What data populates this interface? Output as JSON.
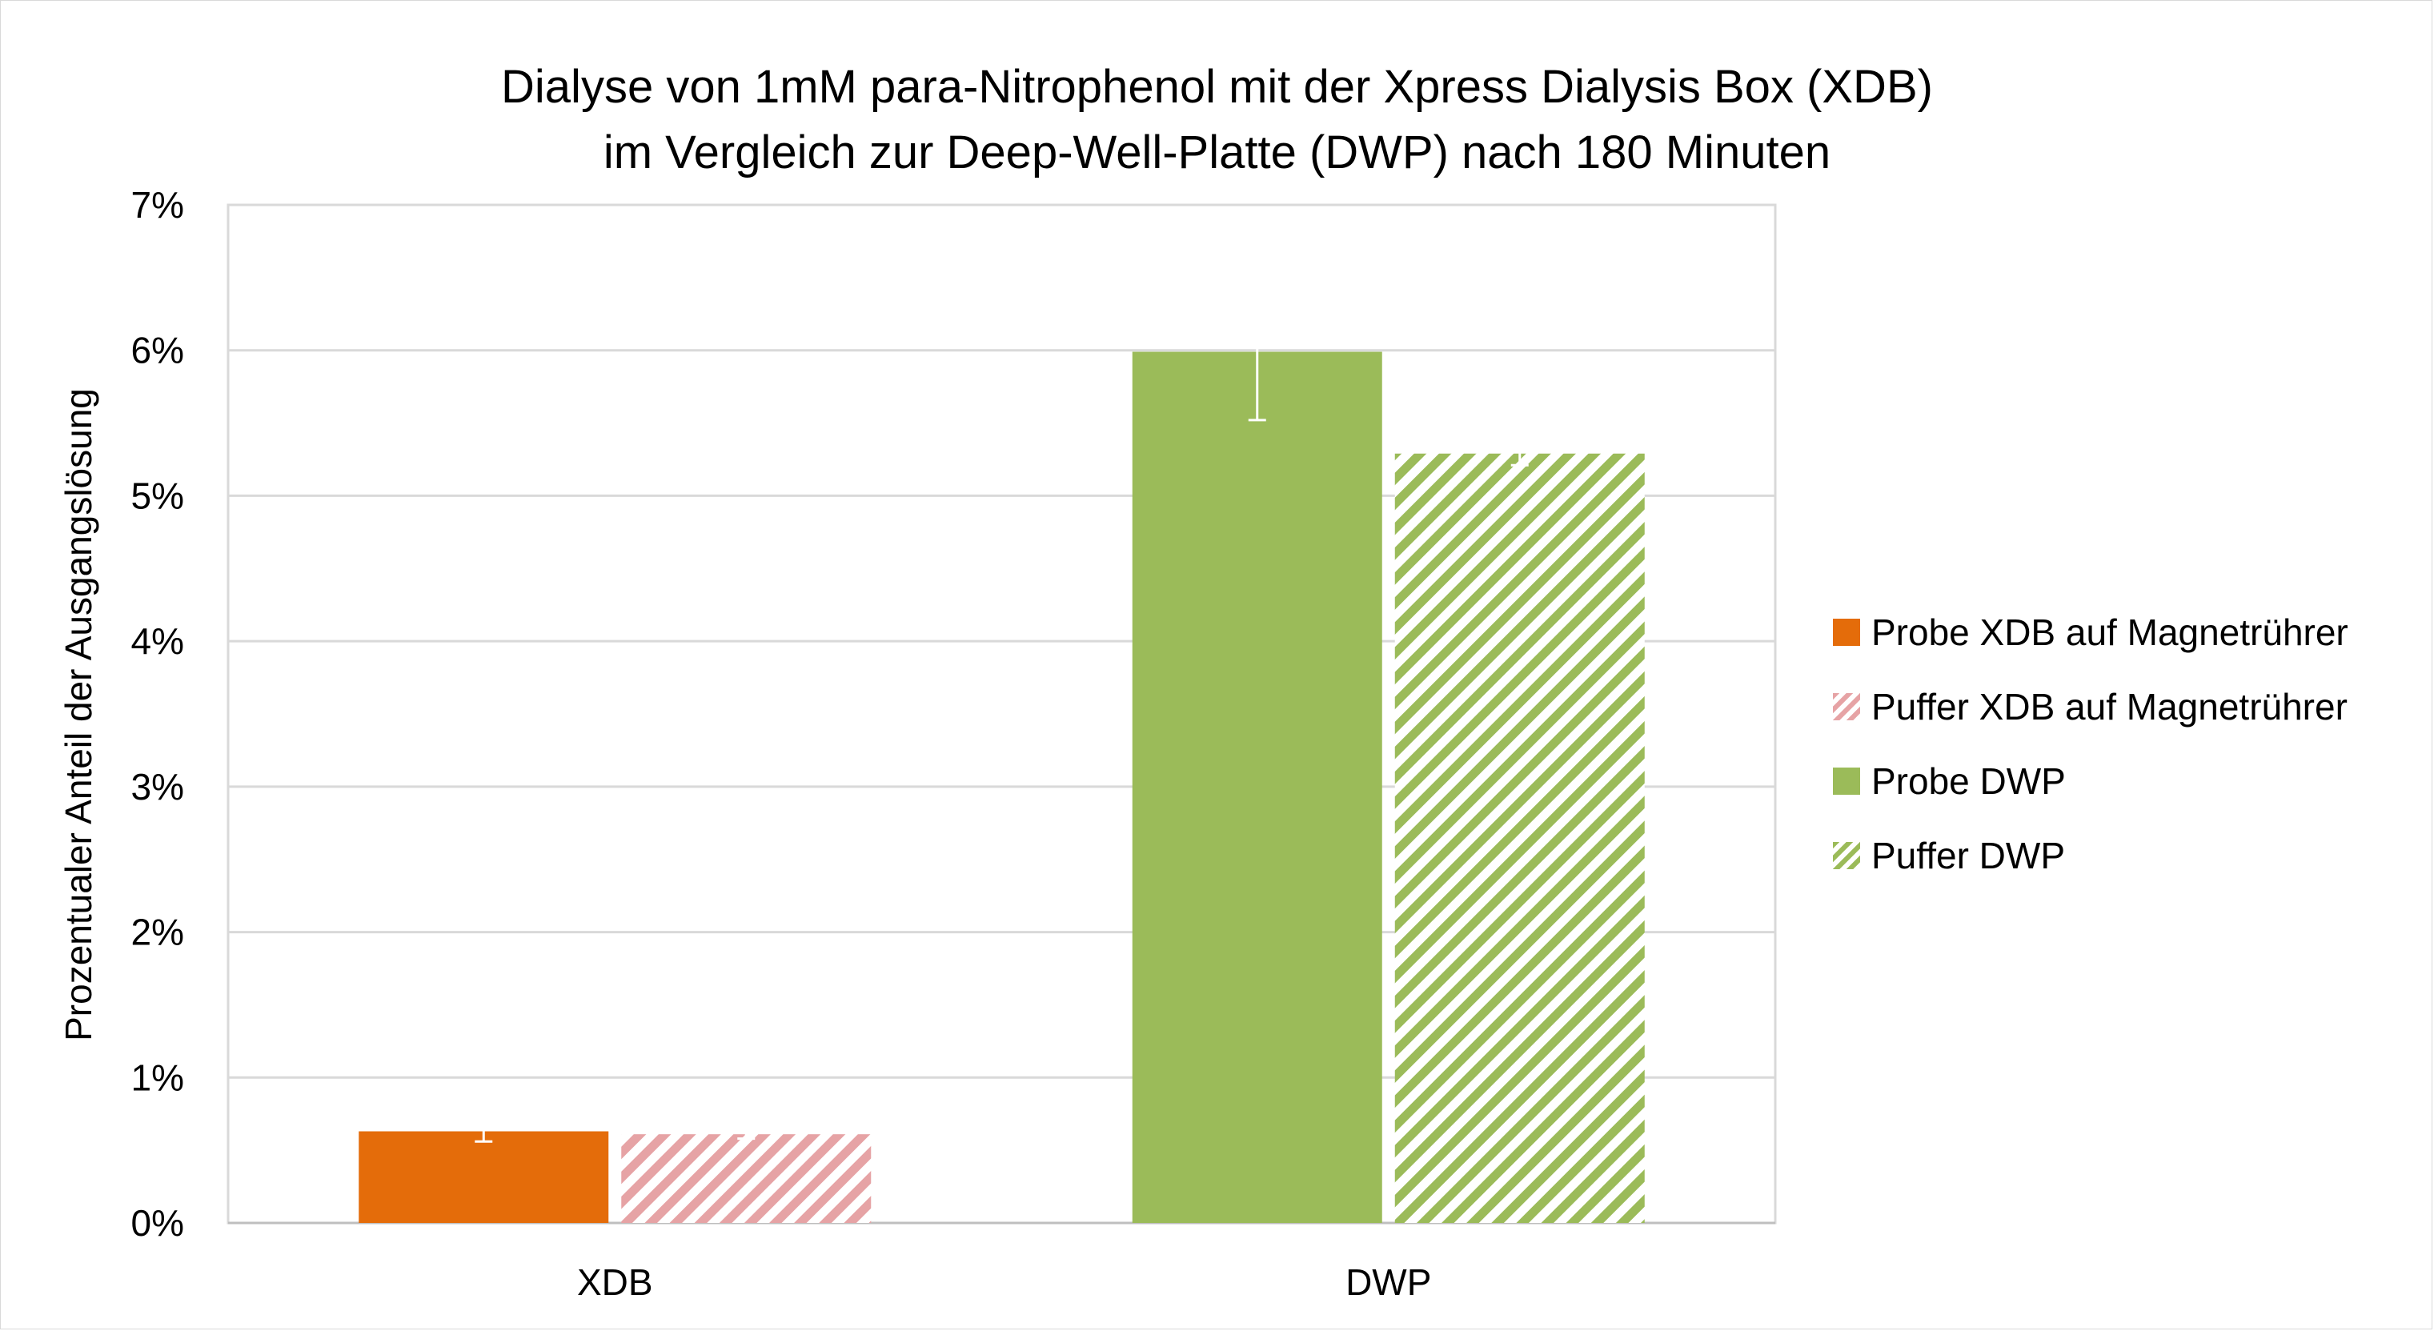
{
  "chart_data": {
    "type": "bar",
    "title": [
      "Dialyse von 1mM para-Nitrophenol mit der Xpress Dialysis Box (XDB)",
      "im Vergleich zur Deep-Well-Platte  (DWP) nach 180 Minuten"
    ],
    "xlabel": "",
    "ylabel": "Prozentualer Anteil der Ausgangslösung",
    "categories": [
      "XDB",
      "DWP"
    ],
    "ylim": [
      0,
      7
    ],
    "yticks": [
      "0%",
      "1%",
      "2%",
      "3%",
      "4%",
      "5%",
      "6%",
      "7%"
    ],
    "grid": true,
    "legend_position": "right",
    "series": [
      {
        "name": "Probe XDB auf Magnetrührer",
        "color": "#E46C0A",
        "pattern": "solid",
        "values": [
          0.63,
          null
        ],
        "error": [
          0.07,
          null
        ]
      },
      {
        "name": "Puffer XDB auf Magnetrührer",
        "color": "#E6A3A5",
        "pattern": "hatch",
        "values": [
          0.61,
          null
        ],
        "error": [
          0.03,
          null
        ]
      },
      {
        "name": "Probe DWP",
        "color": "#9BBB59",
        "pattern": "solid",
        "values": [
          null,
          5.99
        ],
        "error": [
          null,
          0.47
        ]
      },
      {
        "name": "Puffer DWP",
        "color": "#9BBB59",
        "pattern": "hatch",
        "values": [
          null,
          5.29
        ],
        "error": [
          null,
          0.08
        ]
      }
    ]
  }
}
